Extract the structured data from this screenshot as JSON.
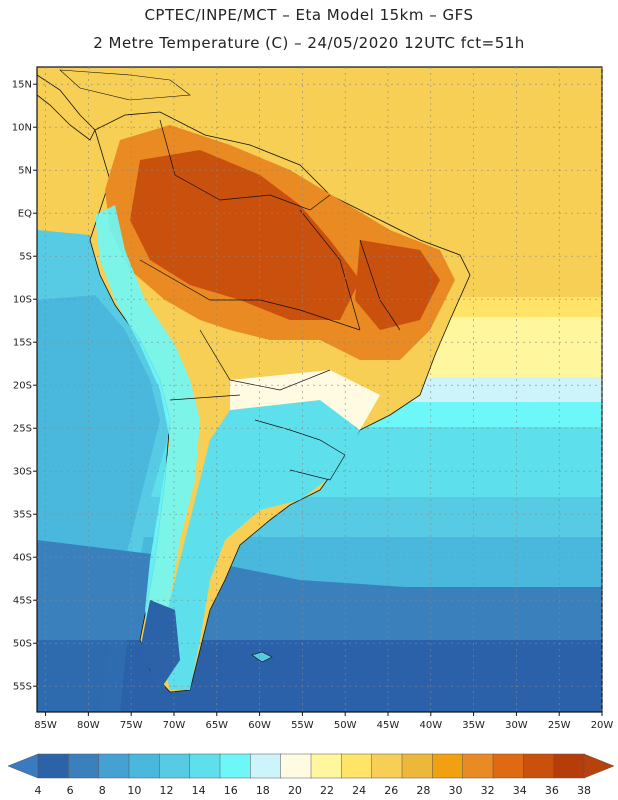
{
  "header": {
    "line1": "CPTEC/INPE/MCT –  Eta Model 15km – GFS",
    "line2": "2 Metre Temperature (C) – 24/05/2020 12UTC fct=51h"
  },
  "axes": {
    "lat_labels": [
      "15N",
      "10N",
      "5N",
      "EQ",
      "5S",
      "10S",
      "15S",
      "20S",
      "25S",
      "30S",
      "35S",
      "40S",
      "45S",
      "50S",
      "55S"
    ],
    "lon_labels": [
      "85W",
      "80W",
      "75W",
      "70W",
      "65W",
      "60W",
      "55W",
      "50W",
      "45W",
      "40W",
      "35W",
      "30W",
      "25W",
      "20W"
    ],
    "lat_range": [
      17,
      -58
    ],
    "lon_range": [
      -86,
      -20
    ]
  },
  "colorbar": {
    "values": [
      "4",
      "6",
      "8",
      "10",
      "12",
      "14",
      "16",
      "18",
      "20",
      "22",
      "24",
      "26",
      "28",
      "30",
      "32",
      "34",
      "36",
      "38"
    ],
    "colors": [
      "#2b62a8",
      "#3a80bd",
      "#45a1d1",
      "#4ab8dc",
      "#56cbe3",
      "#5ee0ec",
      "#6ef7f8",
      "#cdf3fb",
      "#fffbe3",
      "#fff69e",
      "#ffe468",
      "#f7cf55",
      "#edb83a",
      "#f0a010",
      "#e98a22",
      "#e06a11",
      "#c9500d",
      "#b43d0a"
    ],
    "left_arrow_color": "#3a7ac0",
    "right_arrow_color": "#b8410c"
  }
}
